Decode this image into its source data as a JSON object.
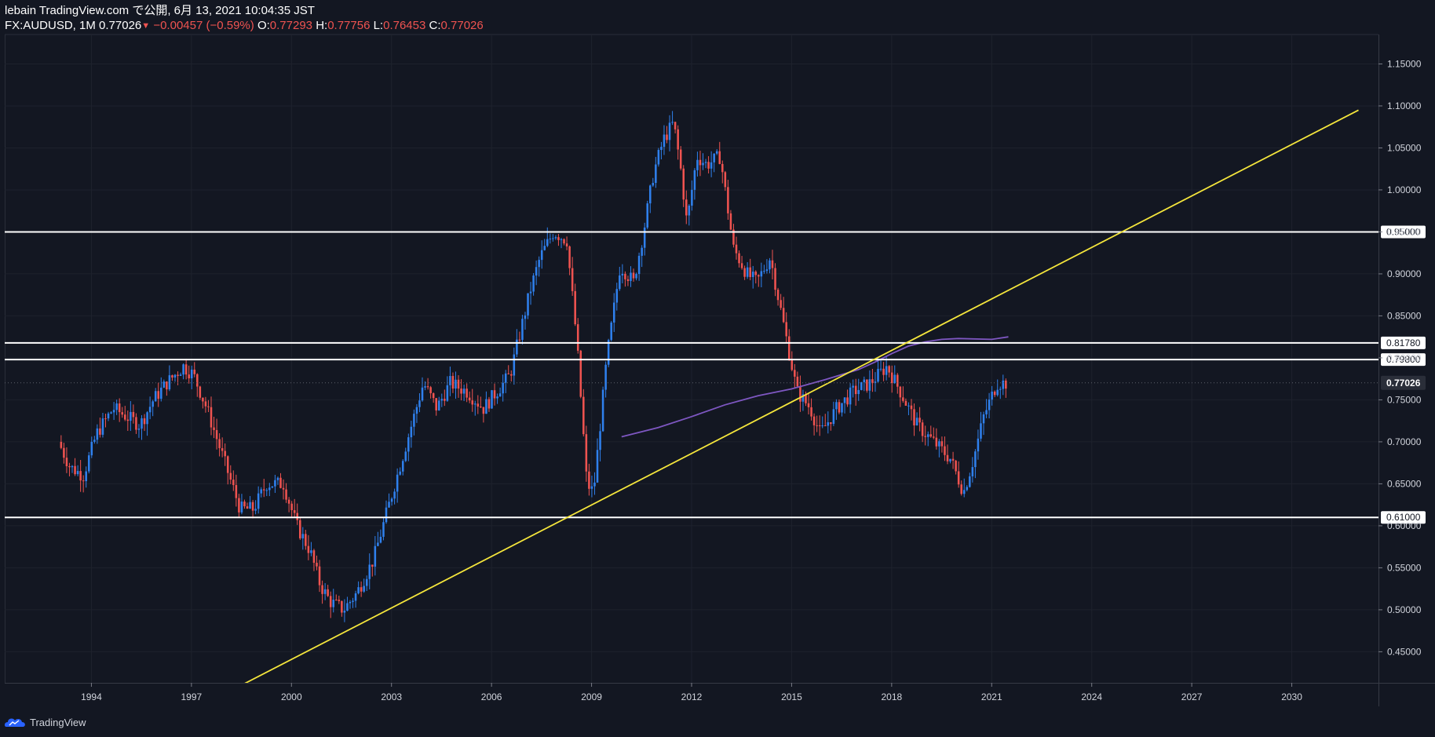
{
  "header": {
    "line1": "lebain TradingView.com で公開, 6月 13, 2021 10:04:35 JST",
    "symbol": "FX:AUDUSD, 1M",
    "last": "0.77026",
    "change_icon": "down-triangle-icon",
    "change": "−0.00457 (−0.59%)",
    "o_label": "O:",
    "o": "0.77293",
    "h_label": "H:",
    "h": "0.77756",
    "l_label": "L:",
    "l": "0.76453",
    "c_label": "C:",
    "c": "0.77026"
  },
  "footer": {
    "brand": "TradingView",
    "icon": "tradingview-cloud-icon"
  },
  "colors": {
    "background": "#131722",
    "up": "#2f80ed",
    "down": "#ef5350",
    "trendline": "#f5e63c",
    "ma": "#7e57c2",
    "level": "#ffffff",
    "grid": "#1e222d"
  },
  "chart_data": {
    "type": "candlestick",
    "symbol": "FX:AUDUSD",
    "interval": "1M",
    "x_ticks": [
      "1994",
      "1997",
      "2000",
      "2003",
      "2006",
      "2009",
      "2012",
      "2015",
      "2018",
      "2021",
      "2024",
      "2027",
      "2030"
    ],
    "xlim": [
      1991.4,
      2032.6
    ],
    "y_ticks": [
      "0.45000",
      "0.50000",
      "0.55000",
      "0.60000",
      "0.65000",
      "0.70000",
      "0.75000",
      "0.80000",
      "0.85000",
      "0.90000",
      "0.95000",
      "1.00000",
      "1.05000",
      "1.10000",
      "1.15000"
    ],
    "ylim": [
      0.413,
      1.185
    ],
    "last_price_label": "0.77026",
    "last_price": 0.77026,
    "horizontal_levels": [
      {
        "price": 0.95,
        "label": "0.95000"
      },
      {
        "price": 0.8178,
        "label": "0.81780"
      },
      {
        "price": 0.798,
        "label": "0.79800"
      },
      {
        "price": 0.61,
        "label": "0.61000"
      }
    ],
    "trendline": {
      "x": [
        1998.0,
        2032.0
      ],
      "y": [
        0.4,
        1.095
      ]
    },
    "moving_average": {
      "x": [
        2009.9,
        2011.0,
        2012.0,
        2013.0,
        2014.0,
        2015.0,
        2016.0,
        2017.0,
        2017.5,
        2018.0,
        2018.5,
        2019.0,
        2019.5,
        2020.0,
        2021.0,
        2021.5
      ],
      "y": [
        0.706,
        0.717,
        0.73,
        0.744,
        0.755,
        0.763,
        0.774,
        0.786,
        0.795,
        0.805,
        0.814,
        0.819,
        0.822,
        0.823,
        0.822,
        0.825
      ]
    },
    "price_path": {
      "x": [
        1993.05,
        1993.4,
        1993.8,
        1994.2,
        1994.7,
        1995.1,
        1995.5,
        1995.9,
        1996.3,
        1996.8,
        1997.1,
        1997.5,
        1998.0,
        1998.5,
        1998.9,
        1999.3,
        1999.8,
        2000.2,
        2000.6,
        2000.9,
        2001.2,
        2001.6,
        2002.0,
        2002.5,
        2003.0,
        2003.5,
        2004.0,
        2004.4,
        2004.8,
        2005.3,
        2005.8,
        2006.2,
        2006.6,
        2006.9,
        2007.2,
        2007.5,
        2007.9,
        2008.3,
        2008.6,
        2008.9,
        2009.1,
        2009.5,
        2009.9,
        2010.3,
        2010.6,
        2010.9,
        2011.2,
        2011.5,
        2011.7,
        2011.9,
        2012.2,
        2012.5,
        2012.9,
        2013.3,
        2013.7,
        2014.0,
        2014.4,
        2014.8,
        2015.2,
        2015.6,
        2015.9,
        2016.4,
        2016.9,
        2017.4,
        2017.9,
        2018.3,
        2018.8,
        2019.3,
        2019.8,
        2020.2,
        2020.5,
        2020.8,
        2021.2,
        2021.45
      ],
      "y": [
        0.7,
        0.67,
        0.66,
        0.71,
        0.74,
        0.73,
        0.72,
        0.75,
        0.77,
        0.79,
        0.78,
        0.74,
        0.68,
        0.62,
        0.62,
        0.65,
        0.65,
        0.6,
        0.57,
        0.53,
        0.51,
        0.5,
        0.52,
        0.56,
        0.63,
        0.7,
        0.77,
        0.74,
        0.77,
        0.76,
        0.74,
        0.76,
        0.78,
        0.83,
        0.88,
        0.92,
        0.95,
        0.94,
        0.82,
        0.65,
        0.64,
        0.8,
        0.91,
        0.89,
        0.95,
        1.02,
        1.06,
        1.08,
        1.03,
        0.96,
        1.04,
        1.03,
        1.04,
        0.93,
        0.9,
        0.89,
        0.92,
        0.84,
        0.76,
        0.74,
        0.71,
        0.74,
        0.76,
        0.77,
        0.79,
        0.76,
        0.72,
        0.7,
        0.68,
        0.64,
        0.68,
        0.73,
        0.77,
        0.77
      ]
    }
  }
}
